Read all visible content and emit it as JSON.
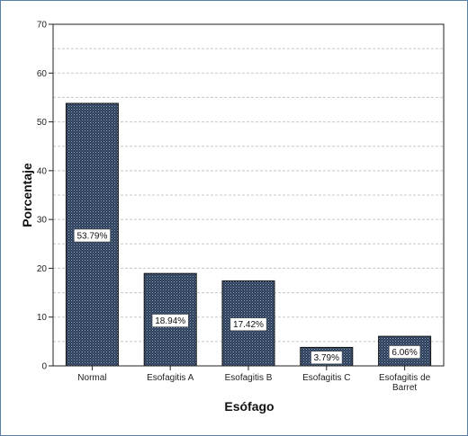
{
  "chart_data": {
    "type": "bar",
    "categories": [
      "Normal",
      "Esofagitis A",
      "Esofagitis B",
      "Esofagitis C",
      "Esofagitis de Barret"
    ],
    "values": [
      53.79,
      18.94,
      17.42,
      3.79,
      6.06
    ],
    "data_labels": [
      "53.79%",
      "18.94%",
      "17.42%",
      "3.79%",
      "6.06%"
    ],
    "xlabel": "Esófago",
    "ylabel": "Porcentaje",
    "ylim": [
      0,
      70
    ],
    "yticks": [
      0,
      10,
      20,
      30,
      40,
      50,
      60,
      70
    ],
    "grid": "horizontal dashed",
    "colors": {
      "bar": "#2b3d57",
      "bar_pattern_dot": "#8fa3bf",
      "grid": "#c8c8c8",
      "frame": "#5b7fa6"
    }
  }
}
